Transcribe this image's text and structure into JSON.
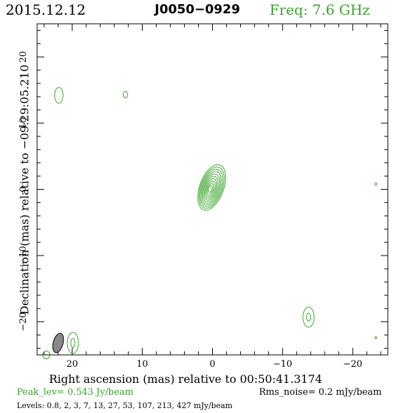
{
  "header": {
    "date": "2015.12.12",
    "source": "J0050−0929",
    "frequency": "Freq: 7.6 GHz"
  },
  "footer": {
    "peak": "Peak_lev=  0.543 Jy/beam",
    "rms": "Rms_noise=  0.2 mJy/beam",
    "levels": "Levels: 0.8,   2,   3,   7,  13,  27,  53, 107, 213, 427 mJy/beam"
  },
  "colors": {
    "contour": "#3aa52b",
    "beam_fill": "#888888",
    "axes": "#000000"
  },
  "chart_data": {
    "type": "contour",
    "title": "J0050−0929",
    "xlabel": "Right ascension (mas) relative to 00:50:41.3174",
    "ylabel": "Declination (mas) relative to −09:29:05.210",
    "xlim": [
      25,
      -25
    ],
    "ylim": [
      -25,
      25
    ],
    "x_ticks": [
      20,
      10,
      0,
      -10,
      -20
    ],
    "x_tick_labels": [
      "20",
      "10",
      "0",
      "−10",
      "−20"
    ],
    "y_ticks": [
      20,
      10,
      0,
      -10,
      -20
    ],
    "y_tick_labels": [
      "20",
      "10",
      "0",
      "−10",
      "−20"
    ],
    "levels_mJy": [
      0.8,
      2,
      3,
      7,
      13,
      27,
      53,
      107,
      213,
      427
    ],
    "main_component": {
      "x": 0.1,
      "y": 0.3,
      "major_outer": 3.6,
      "minor_outer": 1.7,
      "position_angle_deg": 20,
      "n_contours": 10
    },
    "minor_components": [
      {
        "x": 21.9,
        "y": 14.2,
        "major": 1.2,
        "minor": 0.6,
        "angle_deg": 0
      },
      {
        "x": 12.4,
        "y": 14.3,
        "major": 0.5,
        "minor": 0.3,
        "angle_deg": 0
      },
      {
        "x": -23.3,
        "y": 0.8,
        "major": 0.2,
        "minor": 0.15,
        "angle_deg": 0
      },
      {
        "x": -13.7,
        "y": -19.3,
        "major": 1.5,
        "minor": 0.8,
        "angle_deg": 0
      },
      {
        "x": -13.7,
        "y": -19.3,
        "major": 0.6,
        "minor": 0.3,
        "angle_deg": 0
      },
      {
        "x": 19.9,
        "y": -23.2,
        "major": 1.6,
        "minor": 0.8,
        "angle_deg": 0
      },
      {
        "x": 19.9,
        "y": -23.2,
        "major": 0.7,
        "minor": 0.3,
        "angle_deg": 0
      },
      {
        "x": -23.3,
        "y": -22.4,
        "major": 0.15,
        "minor": 0.12,
        "angle_deg": 0
      },
      {
        "x": 23.7,
        "y": -25.0,
        "major": 0.6,
        "minor": 0.5,
        "angle_deg": 0
      }
    ],
    "beam": {
      "x": 22.0,
      "y": -23.2,
      "major": 1.5,
      "minor": 0.7,
      "angle_deg": 15
    }
  }
}
